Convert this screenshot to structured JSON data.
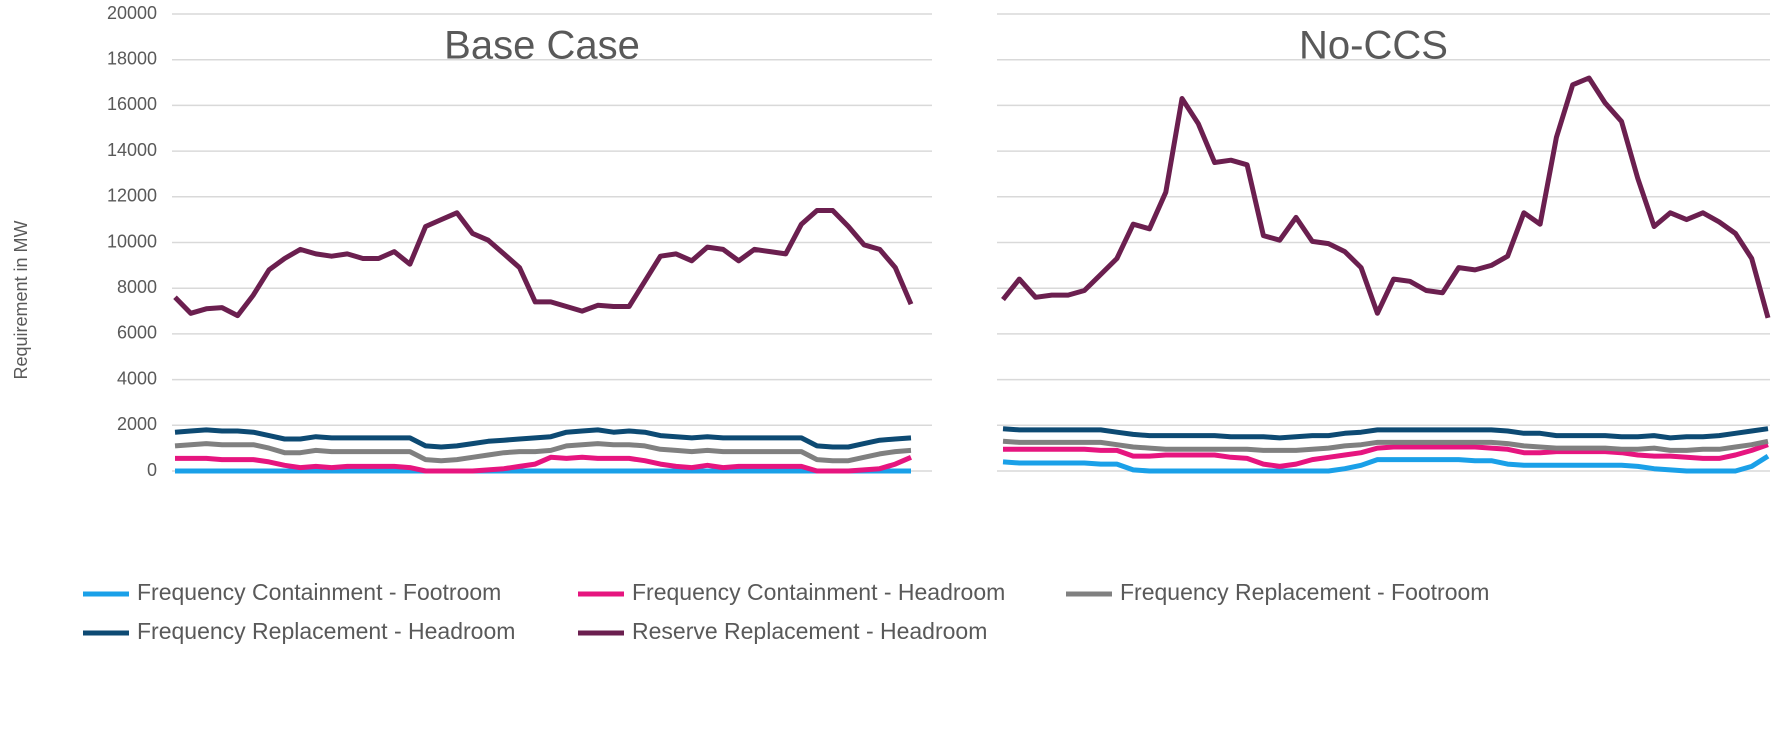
{
  "chart_data": [
    {
      "type": "line",
      "title": "Base Case",
      "y_label": "Requirement in MW",
      "ylim": [
        0,
        20000
      ],
      "yticks": [
        0,
        2000,
        4000,
        6000,
        8000,
        10000,
        12000,
        14000,
        16000,
        18000,
        20000
      ],
      "grid": true,
      "series": [
        {
          "name": "Frequency Containment - Footroom",
          "color": "#1aa0e8",
          "values": [
            0,
            0,
            0,
            0,
            0,
            0,
            0,
            0,
            0,
            0,
            0,
            0,
            0,
            0,
            0,
            0,
            0,
            0,
            0,
            0,
            0,
            0,
            0,
            0,
            0,
            0,
            0,
            0,
            0,
            0,
            0,
            0,
            0,
            0,
            0,
            0,
            0,
            0,
            0,
            0,
            0,
            0,
            0,
            0,
            0,
            0,
            0,
            0
          ]
        },
        {
          "name": "Frequency Containment - Headroom",
          "color": "#e6157f",
          "values": [
            550,
            550,
            550,
            500,
            500,
            500,
            400,
            250,
            150,
            200,
            150,
            200,
            200,
            200,
            200,
            150,
            0,
            0,
            0,
            0,
            50,
            100,
            200,
            300,
            600,
            550,
            600,
            550,
            550,
            550,
            450,
            300,
            200,
            150,
            250,
            150,
            200,
            200,
            200,
            200,
            200,
            0,
            0,
            0,
            50,
            100,
            300,
            600
          ]
        },
        {
          "name": "Frequency Replacement - Footroom",
          "color": "#808080",
          "values": [
            1100,
            1150,
            1200,
            1150,
            1150,
            1150,
            1000,
            800,
            800,
            900,
            850,
            850,
            850,
            850,
            850,
            850,
            500,
            450,
            500,
            600,
            700,
            800,
            850,
            850,
            900,
            1100,
            1150,
            1200,
            1150,
            1150,
            1100,
            950,
            900,
            850,
            900,
            850,
            850,
            850,
            850,
            850,
            850,
            500,
            450,
            450,
            600,
            750,
            850,
            900
          ]
        },
        {
          "name": "Frequency Replacement - Headroom",
          "color": "#0d4a73",
          "values": [
            1700,
            1750,
            1800,
            1750,
            1750,
            1700,
            1550,
            1400,
            1400,
            1500,
            1450,
            1450,
            1450,
            1450,
            1450,
            1450,
            1100,
            1050,
            1100,
            1200,
            1300,
            1350,
            1400,
            1450,
            1500,
            1700,
            1750,
            1800,
            1700,
            1750,
            1700,
            1550,
            1500,
            1450,
            1500,
            1450,
            1450,
            1450,
            1450,
            1450,
            1450,
            1100,
            1050,
            1050,
            1200,
            1350,
            1400,
            1450
          ]
        },
        {
          "name": "Reserve Replacement - Headroom",
          "color": "#6b1f4f",
          "values": [
            7600,
            6900,
            7100,
            7150,
            6800,
            7700,
            8800,
            9300,
            9700,
            9500,
            9400,
            9500,
            9300,
            9300,
            9600,
            9050,
            10700,
            11000,
            11300,
            10400,
            10100,
            9500,
            8900,
            7400,
            7400,
            7200,
            7000,
            7250,
            7200,
            7200,
            8300,
            9400,
            9500,
            9200,
            9800,
            9700,
            9200,
            9700,
            9600,
            9500,
            10800,
            11400,
            11400,
            10700,
            9900,
            9700,
            8900,
            7300
          ]
        }
      ]
    },
    {
      "type": "line",
      "title": "No-CCS",
      "ylim": [
        0,
        20000
      ],
      "yticks": [
        0,
        2000,
        4000,
        6000,
        8000,
        10000,
        12000,
        14000,
        16000,
        18000,
        20000
      ],
      "grid": true,
      "series": [
        {
          "color": "#1aa0e8",
          "values": [
            400,
            350,
            350,
            350,
            350,
            350,
            300,
            300,
            50,
            0,
            0,
            0,
            0,
            0,
            0,
            0,
            0,
            0,
            0,
            0,
            0,
            100,
            250,
            500,
            500,
            500,
            500,
            500,
            500,
            450,
            450,
            300,
            250,
            250,
            250,
            250,
            250,
            250,
            250,
            200,
            100,
            50,
            0,
            0,
            0,
            0,
            200,
            650
          ]
        },
        {
          "color": "#e6157f",
          "values": [
            950,
            950,
            950,
            950,
            950,
            950,
            900,
            900,
            650,
            650,
            700,
            700,
            700,
            700,
            600,
            550,
            300,
            200,
            300,
            500,
            600,
            700,
            800,
            1000,
            1050,
            1050,
            1050,
            1050,
            1050,
            1050,
            1000,
            950,
            800,
            800,
            850,
            850,
            850,
            850,
            800,
            700,
            650,
            650,
            600,
            550,
            550,
            700,
            900,
            1150
          ]
        },
        {
          "color": "#808080",
          "values": [
            1300,
            1250,
            1250,
            1250,
            1250,
            1250,
            1250,
            1150,
            1050,
            1000,
            950,
            950,
            950,
            950,
            950,
            950,
            900,
            900,
            900,
            950,
            1000,
            1100,
            1150,
            1250,
            1250,
            1250,
            1250,
            1250,
            1250,
            1250,
            1250,
            1200,
            1100,
            1050,
            1000,
            1000,
            1000,
            1000,
            950,
            950,
            1000,
            900,
            900,
            950,
            950,
            1050,
            1150,
            1300
          ]
        },
        {
          "color": "#0d4a73",
          "values": [
            1850,
            1800,
            1800,
            1800,
            1800,
            1800,
            1800,
            1700,
            1600,
            1550,
            1550,
            1550,
            1550,
            1550,
            1500,
            1500,
            1500,
            1450,
            1500,
            1550,
            1550,
            1650,
            1700,
            1800,
            1800,
            1800,
            1800,
            1800,
            1800,
            1800,
            1800,
            1750,
            1650,
            1650,
            1550,
            1550,
            1550,
            1550,
            1500,
            1500,
            1550,
            1450,
            1500,
            1500,
            1550,
            1650,
            1750,
            1850
          ]
        },
        {
          "color": "#6b1f4f",
          "values": [
            7500,
            8400,
            7600,
            7700,
            7700,
            7900,
            8600,
            9300,
            10800,
            10600,
            12200,
            16300,
            15200,
            13500,
            13600,
            13400,
            10300,
            10100,
            11100,
            10050,
            9950,
            9600,
            8900,
            6900,
            8400,
            8300,
            7900,
            7800,
            8900,
            8800,
            9000,
            9400,
            11300,
            10800,
            14600,
            16900,
            17200,
            16100,
            15300,
            12800,
            10700,
            11300,
            11000,
            11300,
            10900,
            10400,
            9300,
            6700
          ]
        }
      ]
    }
  ]
}
